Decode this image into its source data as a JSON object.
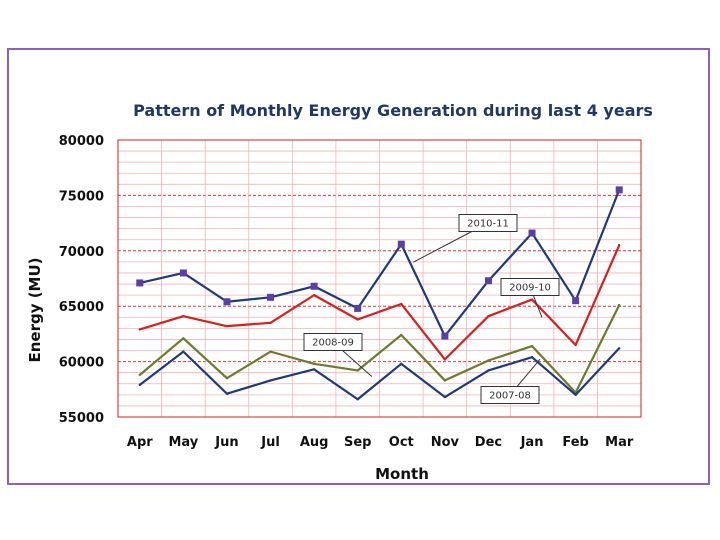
{
  "chart_data": {
    "type": "line",
    "title": "Pattern of Monthly Energy Generation during last 4 years",
    "xlabel": "Month",
    "ylabel": "Energy (MU)",
    "categories": [
      "Apr",
      "May",
      "Jun",
      "Jul",
      "Aug",
      "Sep",
      "Oct",
      "Nov",
      "Dec",
      "Jan",
      "Feb",
      "Mar"
    ],
    "ylim": [
      55000,
      80000
    ],
    "yticks": [
      "55000",
      "60000",
      "65000",
      "70000",
      "75000",
      "80000"
    ],
    "grid": true,
    "series": [
      {
        "name": "2010-11",
        "color": "#1f3a7a",
        "marker": "square",
        "values": [
          67100,
          68000,
          65400,
          65800,
          66800,
          64800,
          70600,
          62300,
          67300,
          71600,
          65500,
          75500
        ]
      },
      {
        "name": "2009-10",
        "color": "#d42020",
        "marker": "none",
        "values": [
          62900,
          64100,
          63200,
          63500,
          66000,
          63800,
          65200,
          60200,
          64100,
          65600,
          61500,
          70500
        ]
      },
      {
        "name": "2008-09",
        "color": "#6b7a2e",
        "marker": "none",
        "values": [
          58800,
          62100,
          58500,
          60900,
          59800,
          59200,
          62400,
          58300,
          60100,
          61400,
          57200,
          65100
        ]
      },
      {
        "name": "2007-08",
        "color": "#1f3a7a",
        "marker": "none",
        "values": [
          57900,
          60900,
          57100,
          58300,
          59300,
          56600,
          59800,
          56800,
          59200,
          60400,
          57000,
          61200
        ]
      }
    ]
  }
}
